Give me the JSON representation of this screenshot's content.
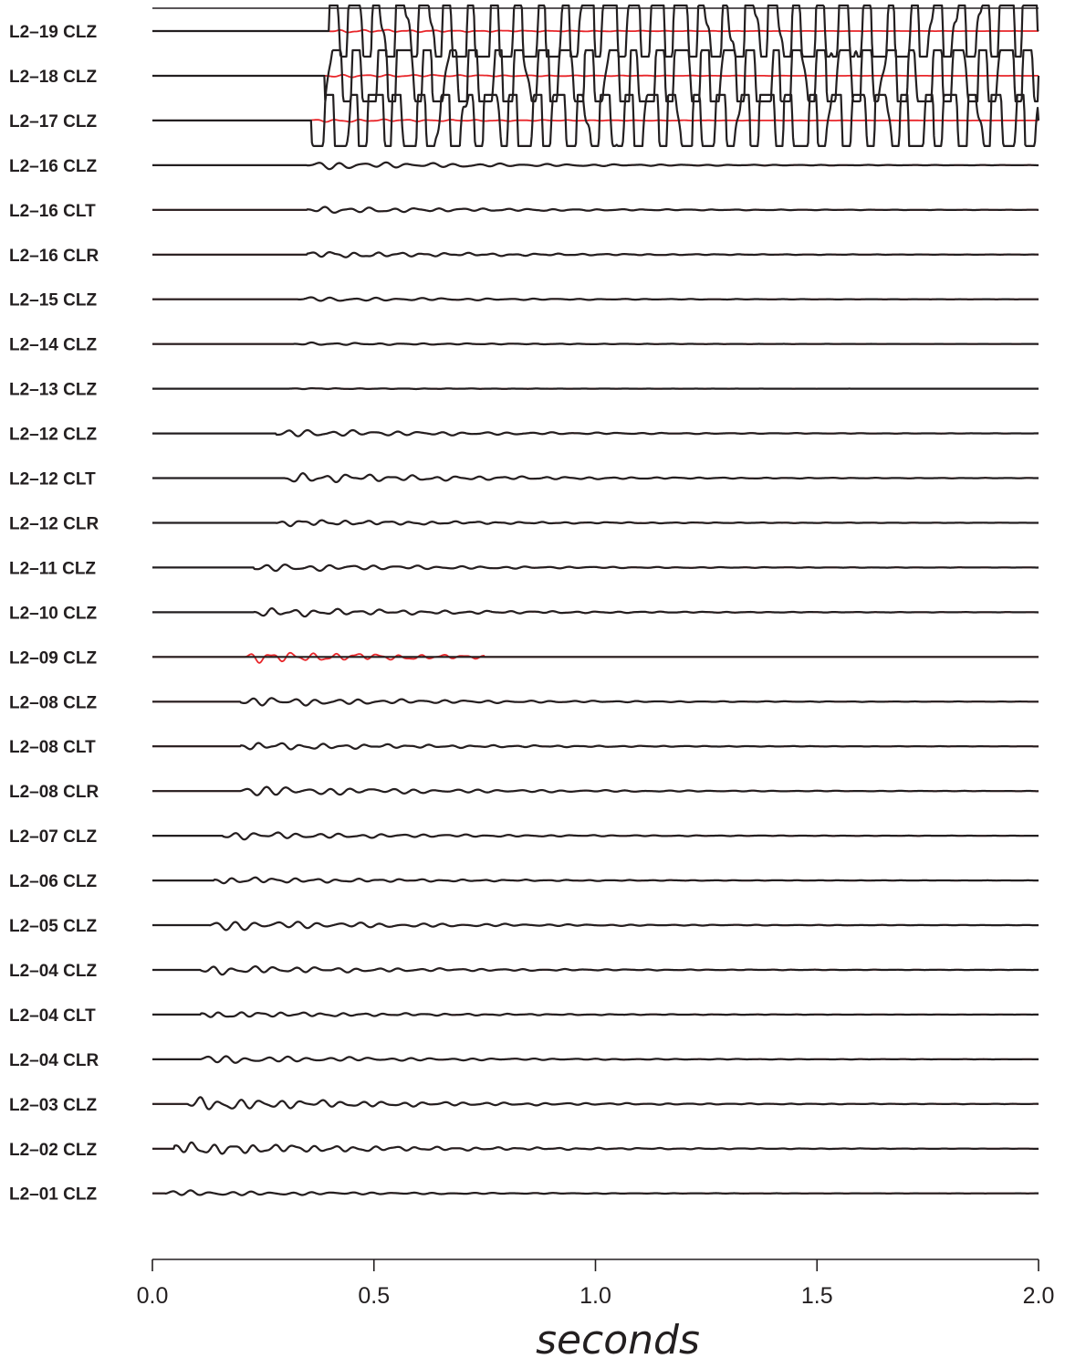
{
  "chart_data": {
    "type": "line",
    "title": "",
    "xlabel": "seconds",
    "ylabel": "",
    "xlim": [
      0.0,
      2.0
    ],
    "x_ticks": [
      "0.0",
      "0.5",
      "1.0",
      "1.5",
      "2.0"
    ],
    "grid": false,
    "series_colors": {
      "observed": "#231f20",
      "synthetic": "#e8262a"
    },
    "traces": [
      {
        "label": "L2–19 CLZ",
        "onset": 0.4,
        "amp": 1.2,
        "clipped": true
      },
      {
        "label": "L2–18 CLZ",
        "onset": 0.39,
        "amp": 1.2,
        "clipped": true
      },
      {
        "label": "L2–17 CLZ",
        "onset": 0.36,
        "amp": 1.2,
        "clipped": true
      },
      {
        "label": "L2–16 CLZ",
        "onset": 0.35,
        "amp": 0.35
      },
      {
        "label": "L2–16 CLT",
        "onset": 0.35,
        "amp": 0.3
      },
      {
        "label": "L2–16 CLR",
        "onset": 0.35,
        "amp": 0.3
      },
      {
        "label": "L2–15 CLZ",
        "onset": 0.33,
        "amp": 0.2
      },
      {
        "label": "L2–14 CLZ",
        "onset": 0.32,
        "amp": 0.12
      },
      {
        "label": "L2–13 CLZ",
        "onset": 0.31,
        "amp": 0.05
      },
      {
        "label": "L2–12 CLZ",
        "onset": 0.28,
        "amp": 0.35
      },
      {
        "label": "L2–12 CLT",
        "onset": 0.3,
        "amp": 0.45
      },
      {
        "label": "L2–12 CLR",
        "onset": 0.28,
        "amp": 0.3
      },
      {
        "label": "L2–11 CLZ",
        "onset": 0.23,
        "amp": 0.35
      },
      {
        "label": "L2–10 CLZ",
        "onset": 0.23,
        "amp": 0.4
      },
      {
        "label": "L2–09 CLZ",
        "onset": 0.21,
        "amp": 0.55,
        "red_only": true,
        "red_end": 0.75
      },
      {
        "label": "L2–08 CLZ",
        "onset": 0.2,
        "amp": 0.4
      },
      {
        "label": "L2–08 CLT",
        "onset": 0.2,
        "amp": 0.35
      },
      {
        "label": "L2–08 CLR",
        "onset": 0.2,
        "amp": 0.45
      },
      {
        "label": "L2–07 CLZ",
        "onset": 0.16,
        "amp": 0.35
      },
      {
        "label": "L2–06 CLZ",
        "onset": 0.14,
        "amp": 0.3
      },
      {
        "label": "L2–05 CLZ",
        "onset": 0.13,
        "amp": 0.45
      },
      {
        "label": "L2–04 CLZ",
        "onset": 0.11,
        "amp": 0.4
      },
      {
        "label": "L2–04 CLT",
        "onset": 0.11,
        "amp": 0.3
      },
      {
        "label": "L2–04 CLR",
        "onset": 0.11,
        "amp": 0.35
      },
      {
        "label": "L2–03 CLZ",
        "onset": 0.08,
        "amp": 0.6
      },
      {
        "label": "L2–02 CLZ",
        "onset": 0.05,
        "amp": 0.6
      },
      {
        "label": "L2–01 CLZ",
        "onset": 0.03,
        "amp": 0.25
      }
    ]
  }
}
